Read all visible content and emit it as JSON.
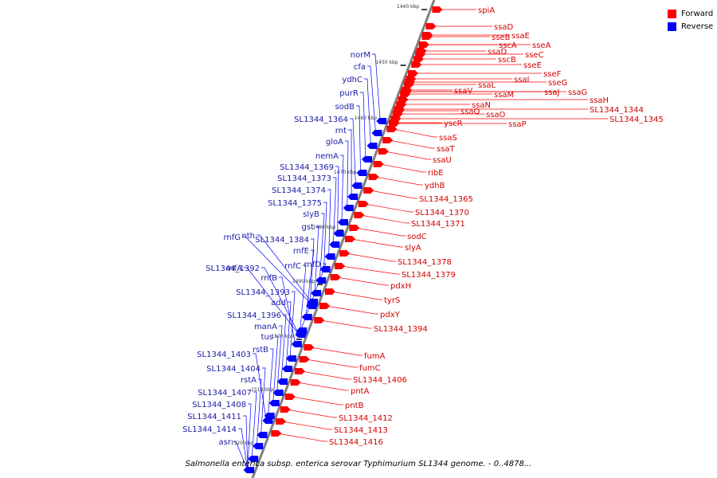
{
  "legend": {
    "forward": {
      "label": "Forward",
      "color": "#ff0000"
    },
    "reverse": {
      "label": "Reverse",
      "color": "#0000ff"
    }
  },
  "caption": "Salmonella enterica subsp. enterica serovar Typhimurium SL1344 genome. - 0..4878...",
  "colors": {
    "forward_label": "#d40000",
    "reverse_label": "#1a1aa6",
    "backbone": "#808080"
  },
  "ticks": [
    "1440 kbp",
    "1450 kbp",
    "1460 kbp",
    "1470 kbp",
    "1480 kbp",
    "1490 kbp",
    "1500 kbp",
    "1510 kbp",
    "1520 kbp"
  ],
  "forward_genes": [
    "spiA",
    "ssaD",
    "ssaE",
    "sseB",
    "sscA",
    "sseA",
    "ssaD",
    "sseC",
    "sscB",
    "sseE",
    "sseF",
    "ssaI",
    "sseG",
    "ssaL",
    "ssaJ",
    "ssaG",
    "ssaV",
    "ssaM",
    "ssaH",
    "ssaN",
    "SL1344_1344",
    "ssaQ",
    "ssaO",
    "SL1344_1345",
    "yscR",
    "ssaP",
    "ssaS",
    "ssaT",
    "ssaU",
    "ribE",
    "ydhB",
    "SL1344_1365",
    "SL1344_1370",
    "SL1344_1371",
    "sodC",
    "slyA",
    "SL1344_1378",
    "SL1344_1379",
    "pdxH",
    "tyrS",
    "pdxY",
    "SL1344_1394",
    "fumA",
    "fumC",
    "SL1344_1406",
    "pntA",
    "pntB",
    "SL1344_1412",
    "SL1344_1413",
    "SL1344_1416"
  ],
  "reverse_genes": [
    "norM",
    "cfa",
    "ydhC",
    "purR",
    "sodB",
    "SL1344_1364",
    "rnt",
    "gloA",
    "nemA",
    "SL1344_1369",
    "SL1344_1373",
    "SL1344_1374",
    "SL1344_1375",
    "slyB",
    "gst",
    "rnfG",
    "nth",
    "SL1344_1384",
    "rnfE",
    "rnfC",
    "rnfD",
    "SL1344_1392",
    "rnfB",
    "rnfA",
    "SL1344_1393",
    "add",
    "SL1344_1396",
    "manA",
    "tus",
    "rstB",
    "SL1344_1403",
    "SL1344_1404",
    "rstA",
    "SL1344_1407",
    "SL1344_1408",
    "SL1344_1411",
    "SL1344_1414",
    "asr"
  ]
}
